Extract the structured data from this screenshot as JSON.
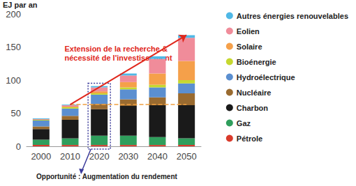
{
  "chart_data": {
    "type": "bar",
    "stacked": true,
    "y_label": "EJ par an",
    "categories": [
      "2000",
      "2010",
      "2020",
      "2030",
      "2040",
      "2050"
    ],
    "series": [
      {
        "name": "Pétrole",
        "color": "#d93a2b",
        "values": [
          2,
          2,
          2,
          2,
          2,
          2
        ]
      },
      {
        "name": "Gaz",
        "color": "#2f9e5c",
        "values": [
          8,
          10,
          14,
          14,
          12,
          10
        ]
      },
      {
        "name": "Charbon",
        "color": "#1a1a1a",
        "values": [
          16,
          28,
          40,
          45,
          48,
          50
        ]
      },
      {
        "name": "Nucléaire",
        "color": "#9a6b30",
        "values": [
          4,
          6,
          8,
          10,
          12,
          18
        ]
      },
      {
        "name": "Hydroélectrique",
        "color": "#5b8fd0",
        "values": [
          9,
          11,
          14,
          15,
          15,
          15
        ]
      },
      {
        "name": "Bioénergie",
        "color": "#c6d830",
        "values": [
          1,
          2,
          2,
          3,
          4,
          5
        ]
      },
      {
        "name": "Solaire",
        "color": "#f5a04a",
        "values": [
          0,
          1,
          3,
          8,
          17,
          29
        ]
      },
      {
        "name": "Eolien",
        "color": "#f08c9a",
        "values": [
          1,
          2,
          6,
          10,
          22,
          35
        ]
      },
      {
        "name": "Autres énergies renouvelables",
        "color": "#4fb8e6",
        "values": [
          1,
          1,
          2,
          3,
          4,
          4
        ]
      }
    ],
    "ylim": [
      0,
      200
    ],
    "yticks": [
      0,
      50,
      100,
      150,
      200
    ],
    "grid": false,
    "legend": "right",
    "annotations": [
      "Extension de la recherche & nécessité de l'investissement",
      "Opportunité : Augmentation du rendement"
    ]
  }
}
